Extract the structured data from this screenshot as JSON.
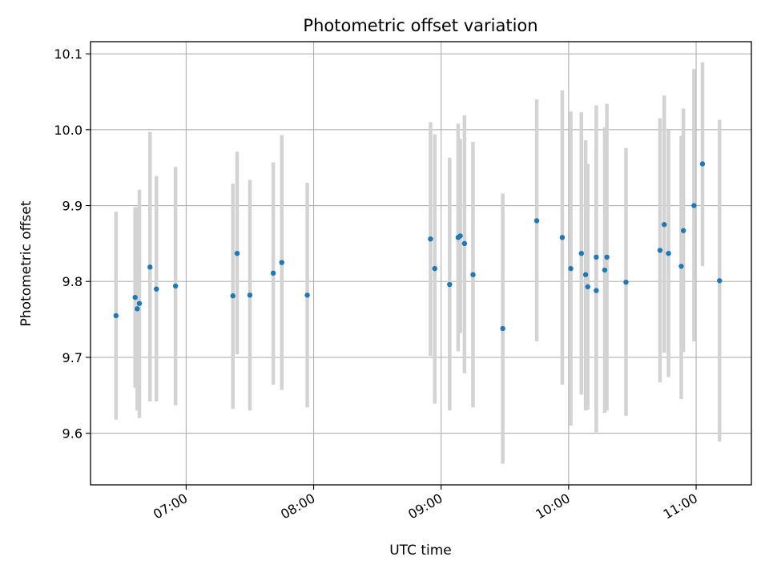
{
  "chart_data": {
    "type": "scatter",
    "title": "Photometric offset variation",
    "xlabel": "UTC time",
    "ylabel": "Photometric offset",
    "x_is_time": true,
    "xlim": [
      "06:15",
      "11:26"
    ],
    "ylim": [
      9.532,
      10.116
    ],
    "xticks": [
      "07:00",
      "08:00",
      "09:00",
      "10:00",
      "11:00"
    ],
    "yticks": [
      "9.6",
      "9.7",
      "9.8",
      "9.9",
      "10.0",
      "10.1"
    ],
    "grid": true,
    "legend": "none",
    "colors": {
      "point": "#1f77b4",
      "errorbar": "#d3d3d3"
    },
    "points": [
      {
        "x": "06:27",
        "y": 9.755,
        "ylow": 9.618,
        "yhigh": 9.892
      },
      {
        "x": "06:36",
        "y": 9.779,
        "ylow": 9.66,
        "yhigh": 9.898
      },
      {
        "x": "06:37",
        "y": 9.764,
        "ylow": 9.63,
        "yhigh": 9.898
      },
      {
        "x": "06:38",
        "y": 9.771,
        "ylow": 9.62,
        "yhigh": 9.921
      },
      {
        "x": "06:43",
        "y": 9.819,
        "ylow": 9.642,
        "yhigh": 9.997
      },
      {
        "x": "06:46",
        "y": 9.79,
        "ylow": 9.642,
        "yhigh": 9.939
      },
      {
        "x": "06:55",
        "y": 9.794,
        "ylow": 9.637,
        "yhigh": 9.951
      },
      {
        "x": "07:22",
        "y": 9.781,
        "ylow": 9.632,
        "yhigh": 9.929
      },
      {
        "x": "07:24",
        "y": 9.837,
        "ylow": 9.704,
        "yhigh": 9.971
      },
      {
        "x": "07:30",
        "y": 9.782,
        "ylow": 9.63,
        "yhigh": 9.934
      },
      {
        "x": "07:41",
        "y": 9.811,
        "ylow": 9.664,
        "yhigh": 9.957
      },
      {
        "x": "07:45",
        "y": 9.825,
        "ylow": 9.657,
        "yhigh": 9.993
      },
      {
        "x": "07:57",
        "y": 9.782,
        "ylow": 9.634,
        "yhigh": 9.93
      },
      {
        "x": "08:55",
        "y": 9.856,
        "ylow": 9.702,
        "yhigh": 10.01
      },
      {
        "x": "08:57",
        "y": 9.817,
        "ylow": 9.639,
        "yhigh": 9.994
      },
      {
        "x": "09:04",
        "y": 9.796,
        "ylow": 9.63,
        "yhigh": 9.963
      },
      {
        "x": "09:08",
        "y": 9.858,
        "ylow": 9.708,
        "yhigh": 10.008
      },
      {
        "x": "09:09",
        "y": 9.86,
        "ylow": 9.732,
        "yhigh": 9.988
      },
      {
        "x": "09:11",
        "y": 9.85,
        "ylow": 9.679,
        "yhigh": 10.019
      },
      {
        "x": "09:15",
        "y": 9.809,
        "ylow": 9.634,
        "yhigh": 9.984
      },
      {
        "x": "09:29",
        "y": 9.738,
        "ylow": 9.56,
        "yhigh": 9.916
      },
      {
        "x": "09:45",
        "y": 9.88,
        "ylow": 9.721,
        "yhigh": 10.04
      },
      {
        "x": "09:57",
        "y": 9.858,
        "ylow": 9.664,
        "yhigh": 10.052
      },
      {
        "x": "10:01",
        "y": 9.817,
        "ylow": 9.61,
        "yhigh": 10.024
      },
      {
        "x": "10:06",
        "y": 9.837,
        "ylow": 9.651,
        "yhigh": 10.023
      },
      {
        "x": "10:08",
        "y": 9.809,
        "ylow": 9.63,
        "yhigh": 9.986
      },
      {
        "x": "10:09",
        "y": 9.793,
        "ylow": 9.631,
        "yhigh": 9.955
      },
      {
        "x": "10:13",
        "y": 9.832,
        "ylow": 9.631,
        "yhigh": 10.032
      },
      {
        "x": "10:13",
        "y": 9.788,
        "ylow": 9.601,
        "yhigh": 9.975
      },
      {
        "x": "10:17",
        "y": 9.815,
        "ylow": 9.627,
        "yhigh": 10.003
      },
      {
        "x": "10:18",
        "y": 9.832,
        "ylow": 9.63,
        "yhigh": 10.034
      },
      {
        "x": "10:27",
        "y": 9.799,
        "ylow": 9.623,
        "yhigh": 9.976
      },
      {
        "x": "10:43",
        "y": 9.841,
        "ylow": 9.667,
        "yhigh": 10.015
      },
      {
        "x": "10:45",
        "y": 9.875,
        "ylow": 9.706,
        "yhigh": 10.045
      },
      {
        "x": "10:47",
        "y": 9.837,
        "ylow": 9.674,
        "yhigh": 10.0
      },
      {
        "x": "10:53",
        "y": 9.82,
        "ylow": 9.645,
        "yhigh": 9.992
      },
      {
        "x": "10:54",
        "y": 9.867,
        "ylow": 9.707,
        "yhigh": 10.028
      },
      {
        "x": "10:59",
        "y": 9.9,
        "ylow": 9.721,
        "yhigh": 10.08
      },
      {
        "x": "11:03",
        "y": 9.955,
        "ylow": 9.82,
        "yhigh": 10.089
      },
      {
        "x": "11:11",
        "y": 9.801,
        "ylow": 9.589,
        "yhigh": 10.013
      }
    ]
  }
}
